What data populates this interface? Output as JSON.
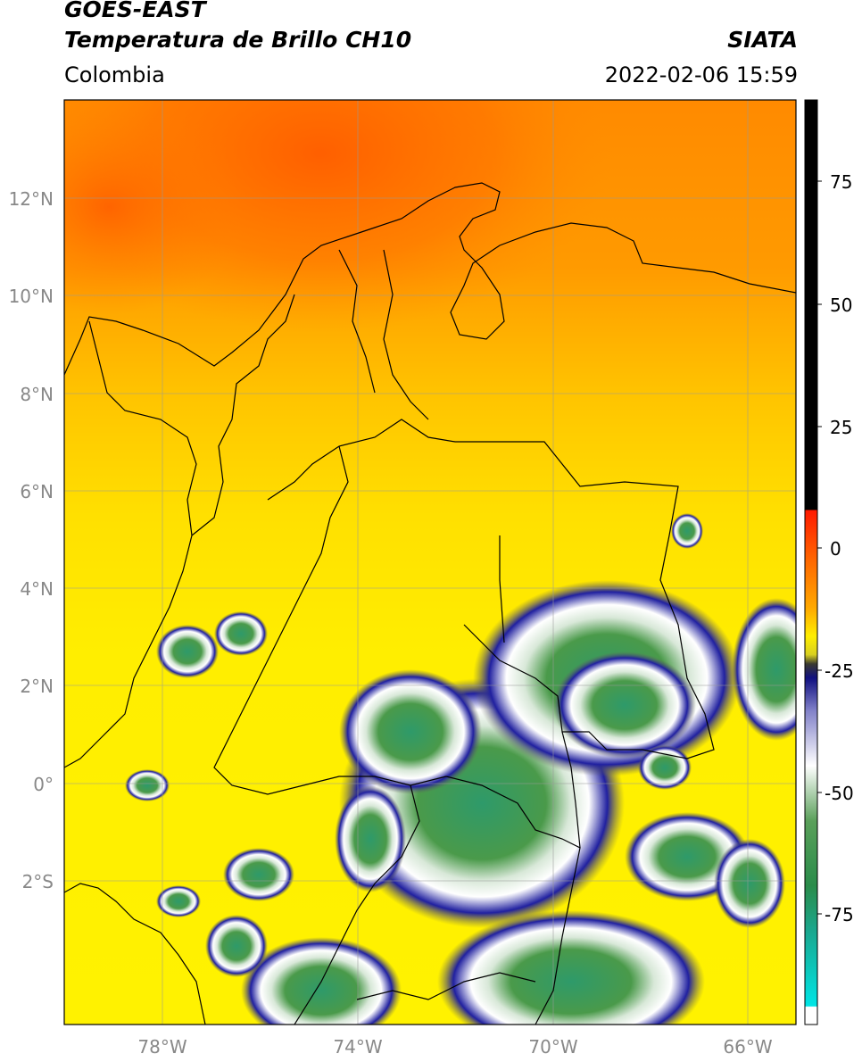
{
  "header": {
    "title_line1": "GOES-EAST",
    "title_line2": "Temperatura de Brillo CH10",
    "source": "SIATA",
    "region": "Colombia",
    "datetime": "2022-02-06 15:59"
  },
  "map": {
    "lat_labels": [
      "12°N",
      "10°N",
      "8°N",
      "6°N",
      "4°N",
      "2°N",
      "0°",
      "2°S"
    ],
    "lon_labels": [
      "78°W",
      "74°W",
      "70°W",
      "66°W"
    ],
    "extent": {
      "lon_min": -80,
      "lon_max": -65,
      "lat_min": -5,
      "lat_max": 14
    }
  },
  "colorbar": {
    "labels": [
      "75",
      "50",
      "25",
      "0",
      "-25",
      "-50",
      "-75"
    ],
    "range": [
      -95,
      90
    ],
    "colors": {
      "warm": "#000000",
      "red": "#ff2a00",
      "orange": "#ff9900",
      "yellow": "#ffee00",
      "olive": "#7a7a3a",
      "navy": "#1a1a8c",
      "white": "#ffffff",
      "green": "#3c8c3c",
      "teal": "#2aa888",
      "cyan": "#00e5e5"
    }
  }
}
